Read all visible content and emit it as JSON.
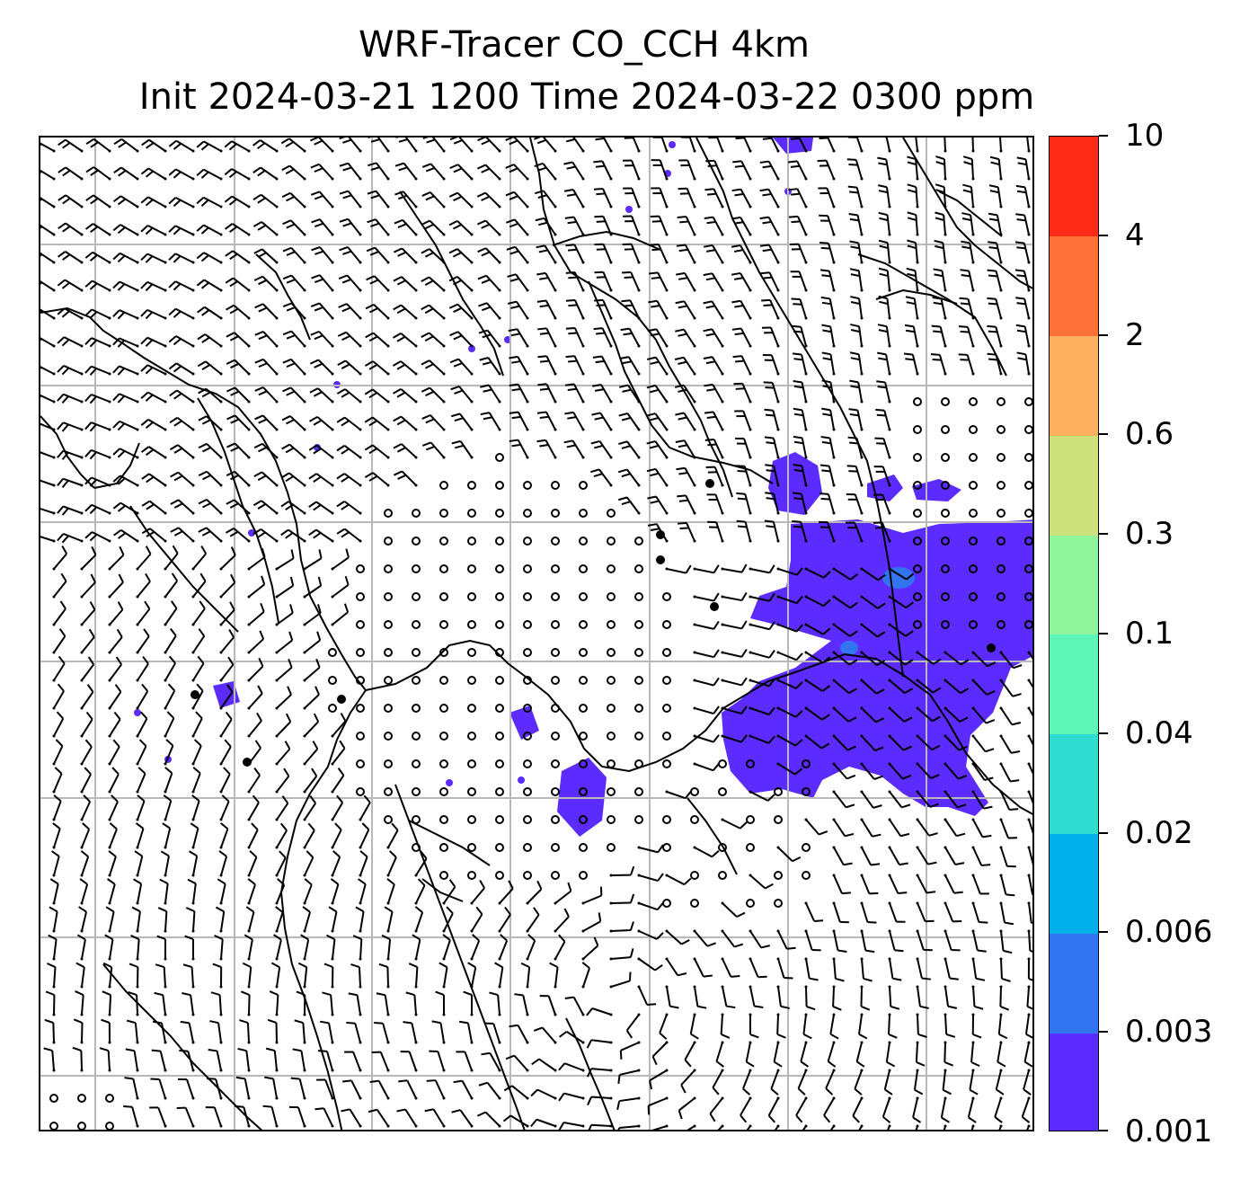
{
  "title": {
    "line1": "WRF-Tracer CO_CCH 4km",
    "line2": "Init 2024-03-21 1200 Time 2024-03-22 0300 ppm"
  },
  "colorbar": {
    "levels": [
      "0.001",
      "0.003",
      "0.006",
      "0.02",
      "0.04",
      "0.1",
      "0.3",
      "0.6",
      "2",
      "4",
      "10"
    ],
    "colors": [
      "#5b2bff",
      "#3375f0",
      "#00b0ea",
      "#2edcd0",
      "#5cf7b8",
      "#8ef59a",
      "#cde07c",
      "#fdb060",
      "#ff7038",
      "#ff2a18"
    ]
  },
  "map": {
    "tracer_color": "#5b2bff",
    "tracer_core_color": "#3375f0",
    "gridline_color": "#b8b8b8"
  }
}
